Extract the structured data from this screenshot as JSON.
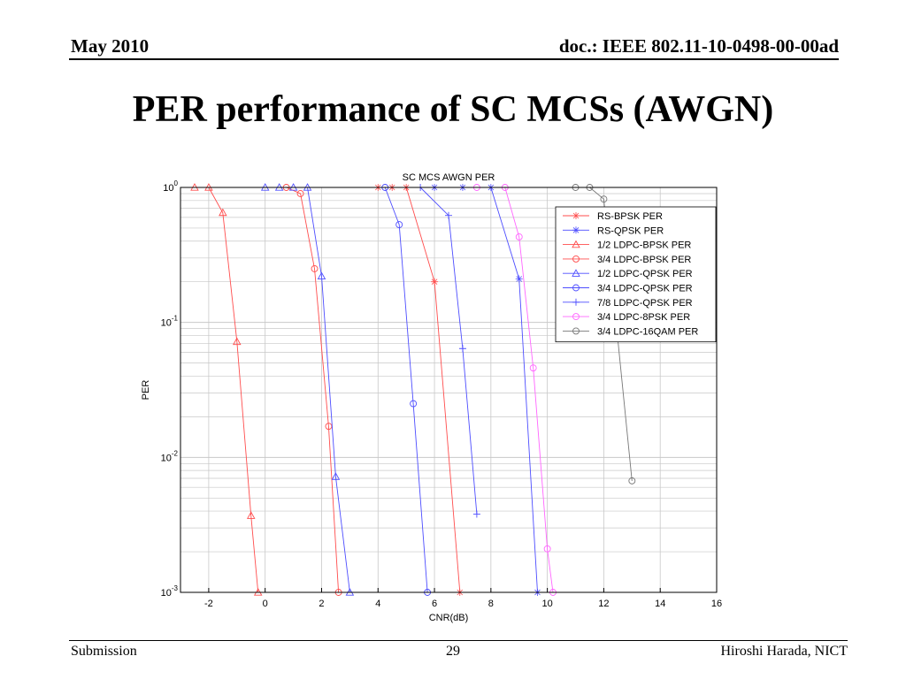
{
  "header": {
    "date": "May 2010",
    "doc": "doc.: IEEE 802.11-10-0498-00-00ad"
  },
  "slide": {
    "title": "PER performance of SC MCSs (AWGN)"
  },
  "footer": {
    "left": "Submission",
    "page": "29",
    "author": "Hiroshi Harada, NICT"
  },
  "chart_data": {
    "type": "line",
    "title": "SC MCS AWGN PER",
    "xlabel": "CNR(dB)",
    "ylabel": "PER",
    "xlim": [
      -3,
      16
    ],
    "ylim": [
      0.001,
      1
    ],
    "yscale": "log",
    "xticks": [
      -2,
      0,
      2,
      4,
      6,
      8,
      10,
      12,
      14,
      16
    ],
    "yticks": [
      {
        "value": 1,
        "base": "10",
        "exp": "0"
      },
      {
        "value": 0.1,
        "base": "10",
        "exp": "-1"
      },
      {
        "value": 0.01,
        "base": "10",
        "exp": "-2"
      },
      {
        "value": 0.001,
        "base": "10",
        "exp": "-3"
      }
    ],
    "grid": true,
    "legend_position": "top-right",
    "series": [
      {
        "name": "RS-BPSK PER",
        "color": "#ff4d4d",
        "marker": "star",
        "x": [
          4.0,
          4.5,
          5.0,
          6.0,
          6.9
        ],
        "y": [
          1,
          1,
          1,
          0.2,
          0.001
        ]
      },
      {
        "name": "RS-QPSK PER",
        "color": "#4d4dff",
        "marker": "star",
        "x": [
          6.0,
          7.0,
          8.0,
          9.0,
          9.65
        ],
        "y": [
          1,
          1,
          1,
          0.21,
          0.001
        ]
      },
      {
        "name": "1/2 LDPC-BPSK PER",
        "color": "#ff4d4d",
        "marker": "triangle",
        "x": [
          -2.5,
          -2.0,
          -1.5,
          -1.0,
          -0.5,
          -0.25
        ],
        "y": [
          1,
          1,
          0.65,
          0.072,
          0.0037,
          0.001
        ]
      },
      {
        "name": "3/4 LDPC-BPSK PER",
        "color": "#ff4d4d",
        "marker": "circle",
        "x": [
          0.75,
          1.25,
          1.75,
          2.25,
          2.6
        ],
        "y": [
          1,
          0.9,
          0.25,
          0.017,
          0.001
        ]
      },
      {
        "name": "1/2 LDPC-QPSK PER",
        "color": "#4d4dff",
        "marker": "triangle",
        "x": [
          0.0,
          0.5,
          1.0,
          1.5,
          2.0,
          2.5,
          3.0
        ],
        "y": [
          1,
          1,
          1,
          1,
          0.22,
          0.0072,
          0.001
        ]
      },
      {
        "name": "3/4 LDPC-QPSK PER",
        "color": "#4d4dff",
        "marker": "circle",
        "x": [
          4.25,
          4.75,
          5.25,
          5.75
        ],
        "y": [
          1,
          0.53,
          0.025,
          0.001
        ]
      },
      {
        "name": "7/8 LDPC-QPSK PER",
        "color": "#4d4dff",
        "marker": "plus",
        "x": [
          5.5,
          6.5,
          7.0,
          7.5
        ],
        "y": [
          1,
          0.62,
          0.064,
          0.0038
        ]
      },
      {
        "name": "3/4 LDPC-8PSK PER",
        "color": "#ff66ff",
        "marker": "circle",
        "x": [
          7.5,
          8.5,
          9.0,
          9.5,
          10.0,
          10.2
        ],
        "y": [
          1,
          1,
          0.43,
          0.046,
          0.0021,
          0.001
        ]
      },
      {
        "name": "3/4 LDPC-16QAM PER",
        "color": "#777777",
        "marker": "circle",
        "x": [
          11.0,
          11.5,
          12.0,
          13.0
        ],
        "y": [
          1,
          1,
          0.82,
          0.0067
        ]
      }
    ]
  }
}
